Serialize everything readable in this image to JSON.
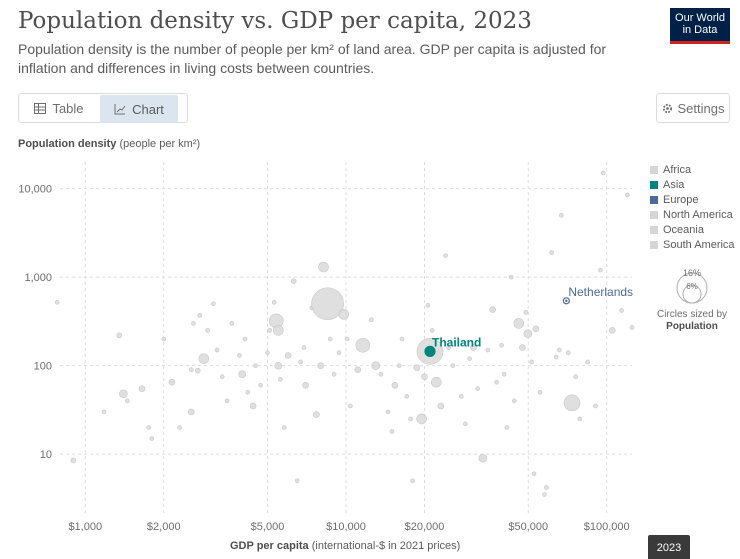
{
  "header": {
    "title": "Population density vs. GDP per capita, 2023",
    "subtitle": "Population density is the number of people per km² of land area. GDP per capita is adjusted for inflation and differences in living costs between countries.",
    "logo_line1": "Our World",
    "logo_line2": "in Data"
  },
  "controls": {
    "table_label": "Table",
    "chart_label": "Chart",
    "settings_label": "Settings"
  },
  "axes": {
    "y_title": "Population density",
    "y_unit": "(people per km²)",
    "x_title": "GDP per capita",
    "x_unit": "(international-$ in 2021 prices)"
  },
  "legend": {
    "items": [
      {
        "name": "Africa",
        "color": "#d6d6d6"
      },
      {
        "name": "Asia",
        "color": "#00847e"
      },
      {
        "name": "Europe",
        "color": "#4c6a9c"
      },
      {
        "name": "North America",
        "color": "#d6d6d6"
      },
      {
        "name": "Oceania",
        "color": "#d6d6d6"
      },
      {
        "name": "South America",
        "color": "#d6d6d6"
      }
    ],
    "size_outer": "16%",
    "size_inner": "6%",
    "size_caption": "Circles sized by",
    "size_caption_bold": "Population"
  },
  "timeline": {
    "year": "2023"
  },
  "chart_data": {
    "type": "scatter",
    "x_scale": "log",
    "y_scale": "log",
    "xlim": [
      800,
      125000
    ],
    "ylim": [
      2,
      20000
    ],
    "x_ticks": [
      {
        "value": 1000,
        "label": "$1,000"
      },
      {
        "value": 2000,
        "label": "$2,000"
      },
      {
        "value": 5000,
        "label": "$5,000"
      },
      {
        "value": 10000,
        "label": "$10,000"
      },
      {
        "value": 20000,
        "label": "$20,000"
      },
      {
        "value": 50000,
        "label": "$50,000"
      },
      {
        "value": 100000,
        "label": "$100,000"
      }
    ],
    "y_ticks": [
      {
        "value": 10,
        "label": "10"
      },
      {
        "value": 100,
        "label": "100"
      },
      {
        "value": 1000,
        "label": "1,000"
      },
      {
        "value": 10000,
        "label": "10,000"
      }
    ],
    "grid": true,
    "highlighted": [
      {
        "name": "Thailand",
        "x": 21000,
        "y": 145,
        "color": "#00847e",
        "r": 10
      },
      {
        "name": "Netherlands",
        "x": 70000,
        "y": 540,
        "color": "#4c6a9c",
        "r": 3
      }
    ],
    "background_points": [
      [
        780,
        520,
        2
      ],
      [
        900,
        8.5,
        2.5
      ],
      [
        1180,
        30,
        2
      ],
      [
        1350,
        220,
        2.5
      ],
      [
        1400,
        48,
        4
      ],
      [
        1450,
        40,
        2
      ],
      [
        1650,
        55,
        3
      ],
      [
        1750,
        20,
        2
      ],
      [
        1800,
        15,
        2
      ],
      [
        2000,
        200,
        2
      ],
      [
        2150,
        65,
        3
      ],
      [
        2300,
        20,
        2
      ],
      [
        2550,
        90,
        2
      ],
      [
        2550,
        30,
        3
      ],
      [
        2600,
        300,
        2
      ],
      [
        2700,
        88,
        2.5
      ],
      [
        2750,
        370,
        2
      ],
      [
        2850,
        120,
        5
      ],
      [
        2950,
        250,
        2
      ],
      [
        3100,
        500,
        2
      ],
      [
        3200,
        150,
        2
      ],
      [
        3350,
        75,
        2
      ],
      [
        3500,
        40,
        2
      ],
      [
        3650,
        300,
        2
      ],
      [
        3900,
        130,
        2
      ],
      [
        4000,
        80,
        3.5
      ],
      [
        4100,
        200,
        2
      ],
      [
        4200,
        50,
        2
      ],
      [
        4400,
        35,
        3
      ],
      [
        4500,
        100,
        2
      ],
      [
        4700,
        60,
        2
      ],
      [
        5000,
        140,
        2
      ],
      [
        5100,
        250,
        2
      ],
      [
        5300,
        520,
        2
      ],
      [
        5400,
        320,
        7
      ],
      [
        5500,
        250,
        5
      ],
      [
        5500,
        100,
        3.5
      ],
      [
        5600,
        70,
        2
      ],
      [
        5800,
        20,
        2
      ],
      [
        6000,
        130,
        3
      ],
      [
        6300,
        900,
        2.5
      ],
      [
        6500,
        5,
        2
      ],
      [
        6700,
        110,
        2
      ],
      [
        6900,
        160,
        2
      ],
      [
        7000,
        60,
        3
      ],
      [
        7400,
        450,
        2
      ],
      [
        7700,
        28,
        3
      ],
      [
        8000,
        100,
        3
      ],
      [
        8200,
        1300,
        5
      ],
      [
        8500,
        500,
        16
      ],
      [
        8700,
        200,
        2
      ],
      [
        9000,
        80,
        2
      ],
      [
        9400,
        140,
        2
      ],
      [
        9800,
        380,
        5
      ],
      [
        10100,
        200,
        2
      ],
      [
        10400,
        35,
        2
      ],
      [
        11100,
        90,
        3
      ],
      [
        11600,
        170,
        7
      ],
      [
        12500,
        330,
        2
      ],
      [
        13000,
        100,
        4
      ],
      [
        13600,
        80,
        2
      ],
      [
        14500,
        30,
        2
      ],
      [
        15000,
        18,
        2
      ],
      [
        15400,
        60,
        3
      ],
      [
        16000,
        100,
        2
      ],
      [
        16400,
        200,
        2
      ],
      [
        17100,
        45,
        2
      ],
      [
        17700,
        25,
        2
      ],
      [
        18000,
        5,
        2
      ],
      [
        18700,
        95,
        3
      ],
      [
        19500,
        25,
        5
      ],
      [
        20000,
        75,
        3
      ],
      [
        20600,
        480,
        2
      ],
      [
        21400,
        250,
        2
      ],
      [
        22200,
        65,
        5
      ],
      [
        23100,
        35,
        3
      ],
      [
        24100,
        1750,
        2
      ],
      [
        24800,
        160,
        2
      ],
      [
        25700,
        100,
        2
      ],
      [
        27700,
        45,
        2
      ],
      [
        28700,
        22,
        2
      ],
      [
        29800,
        120,
        2
      ],
      [
        30800,
        160,
        3
      ],
      [
        32000,
        55,
        2
      ],
      [
        33500,
        9,
        4
      ],
      [
        35000,
        150,
        2
      ],
      [
        36500,
        430,
        3
      ],
      [
        37800,
        65,
        2
      ],
      [
        39500,
        170,
        2
      ],
      [
        40400,
        80,
        2
      ],
      [
        41400,
        20,
        2
      ],
      [
        43000,
        1000,
        2
      ],
      [
        44200,
        40,
        2
      ],
      [
        46000,
        300,
        5
      ],
      [
        47500,
        160,
        3
      ],
      [
        49000,
        400,
        2
      ],
      [
        49800,
        230,
        4
      ],
      [
        51500,
        110,
        2
      ],
      [
        52600,
        6,
        2
      ],
      [
        53500,
        260,
        3
      ],
      [
        55500,
        50,
        2
      ],
      [
        57700,
        3.5,
        2
      ],
      [
        58700,
        4.2,
        2
      ],
      [
        61500,
        1900,
        2
      ],
      [
        64000,
        125,
        2
      ],
      [
        65800,
        150,
        2
      ],
      [
        67000,
        5000,
        2
      ],
      [
        71200,
        140,
        2
      ],
      [
        73600,
        38,
        8
      ],
      [
        76000,
        75,
        2
      ],
      [
        78800,
        25,
        2
      ],
      [
        84500,
        110,
        2
      ],
      [
        90600,
        35,
        2
      ],
      [
        94600,
        1200,
        2
      ],
      [
        97000,
        15000,
        2
      ],
      [
        105000,
        250,
        3
      ],
      [
        114000,
        420,
        2
      ],
      [
        120000,
        8500,
        2
      ],
      [
        125000,
        270,
        2
      ]
    ]
  }
}
